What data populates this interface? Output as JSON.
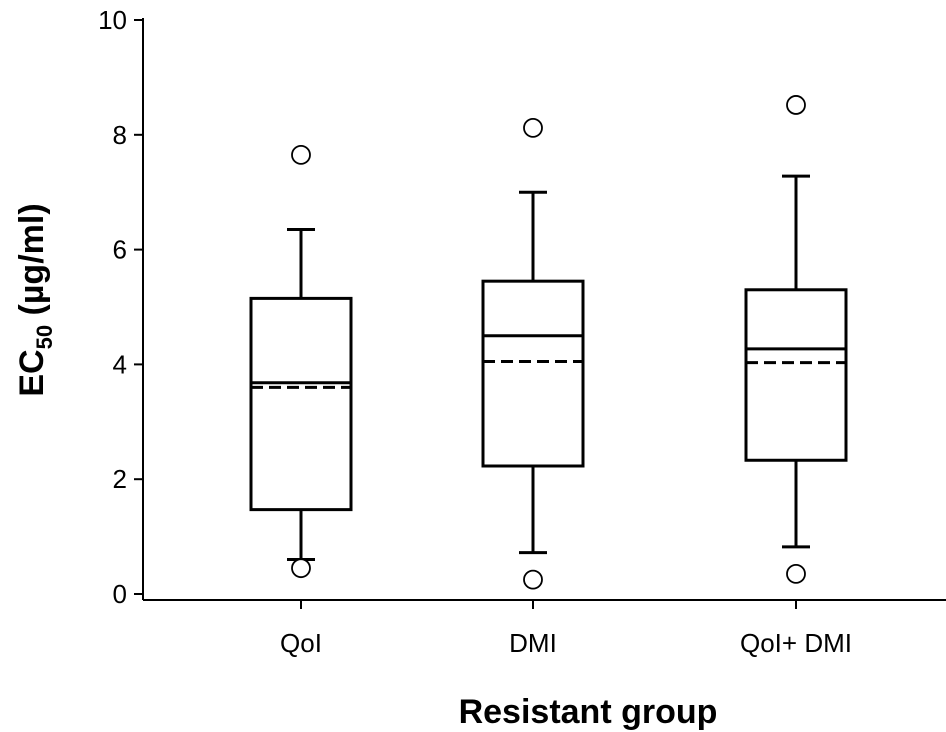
{
  "chart_data": {
    "type": "box",
    "xlabel": "Resistant group",
    "ylabel": {
      "main": "EC",
      "subscript": "50",
      "unit": " (µg/ml)"
    },
    "ylim": [
      0,
      10
    ],
    "yticks": [
      0,
      2,
      4,
      6,
      8,
      10
    ],
    "categories": [
      "QoI",
      "DMI",
      "QoI+ DMI"
    ],
    "boxes": [
      {
        "category": "QoI",
        "whisker_low": 0.6,
        "q1": 1.47,
        "median": 3.68,
        "mean": 3.6,
        "q3": 5.15,
        "whisker_high": 6.35,
        "outliers": [
          7.65,
          0.45
        ]
      },
      {
        "category": "DMI",
        "whisker_low": 0.72,
        "q1": 2.23,
        "median": 4.5,
        "mean": 4.05,
        "q3": 5.45,
        "whisker_high": 7.0,
        "outliers": [
          8.12,
          0.25
        ]
      },
      {
        "category": "QoI+ DMI",
        "whisker_low": 0.82,
        "q1": 2.33,
        "median": 4.27,
        "mean": 4.03,
        "q3": 5.3,
        "whisker_high": 7.28,
        "outliers": [
          8.52,
          0.35
        ]
      }
    ],
    "legend": "none",
    "grid": false
  }
}
